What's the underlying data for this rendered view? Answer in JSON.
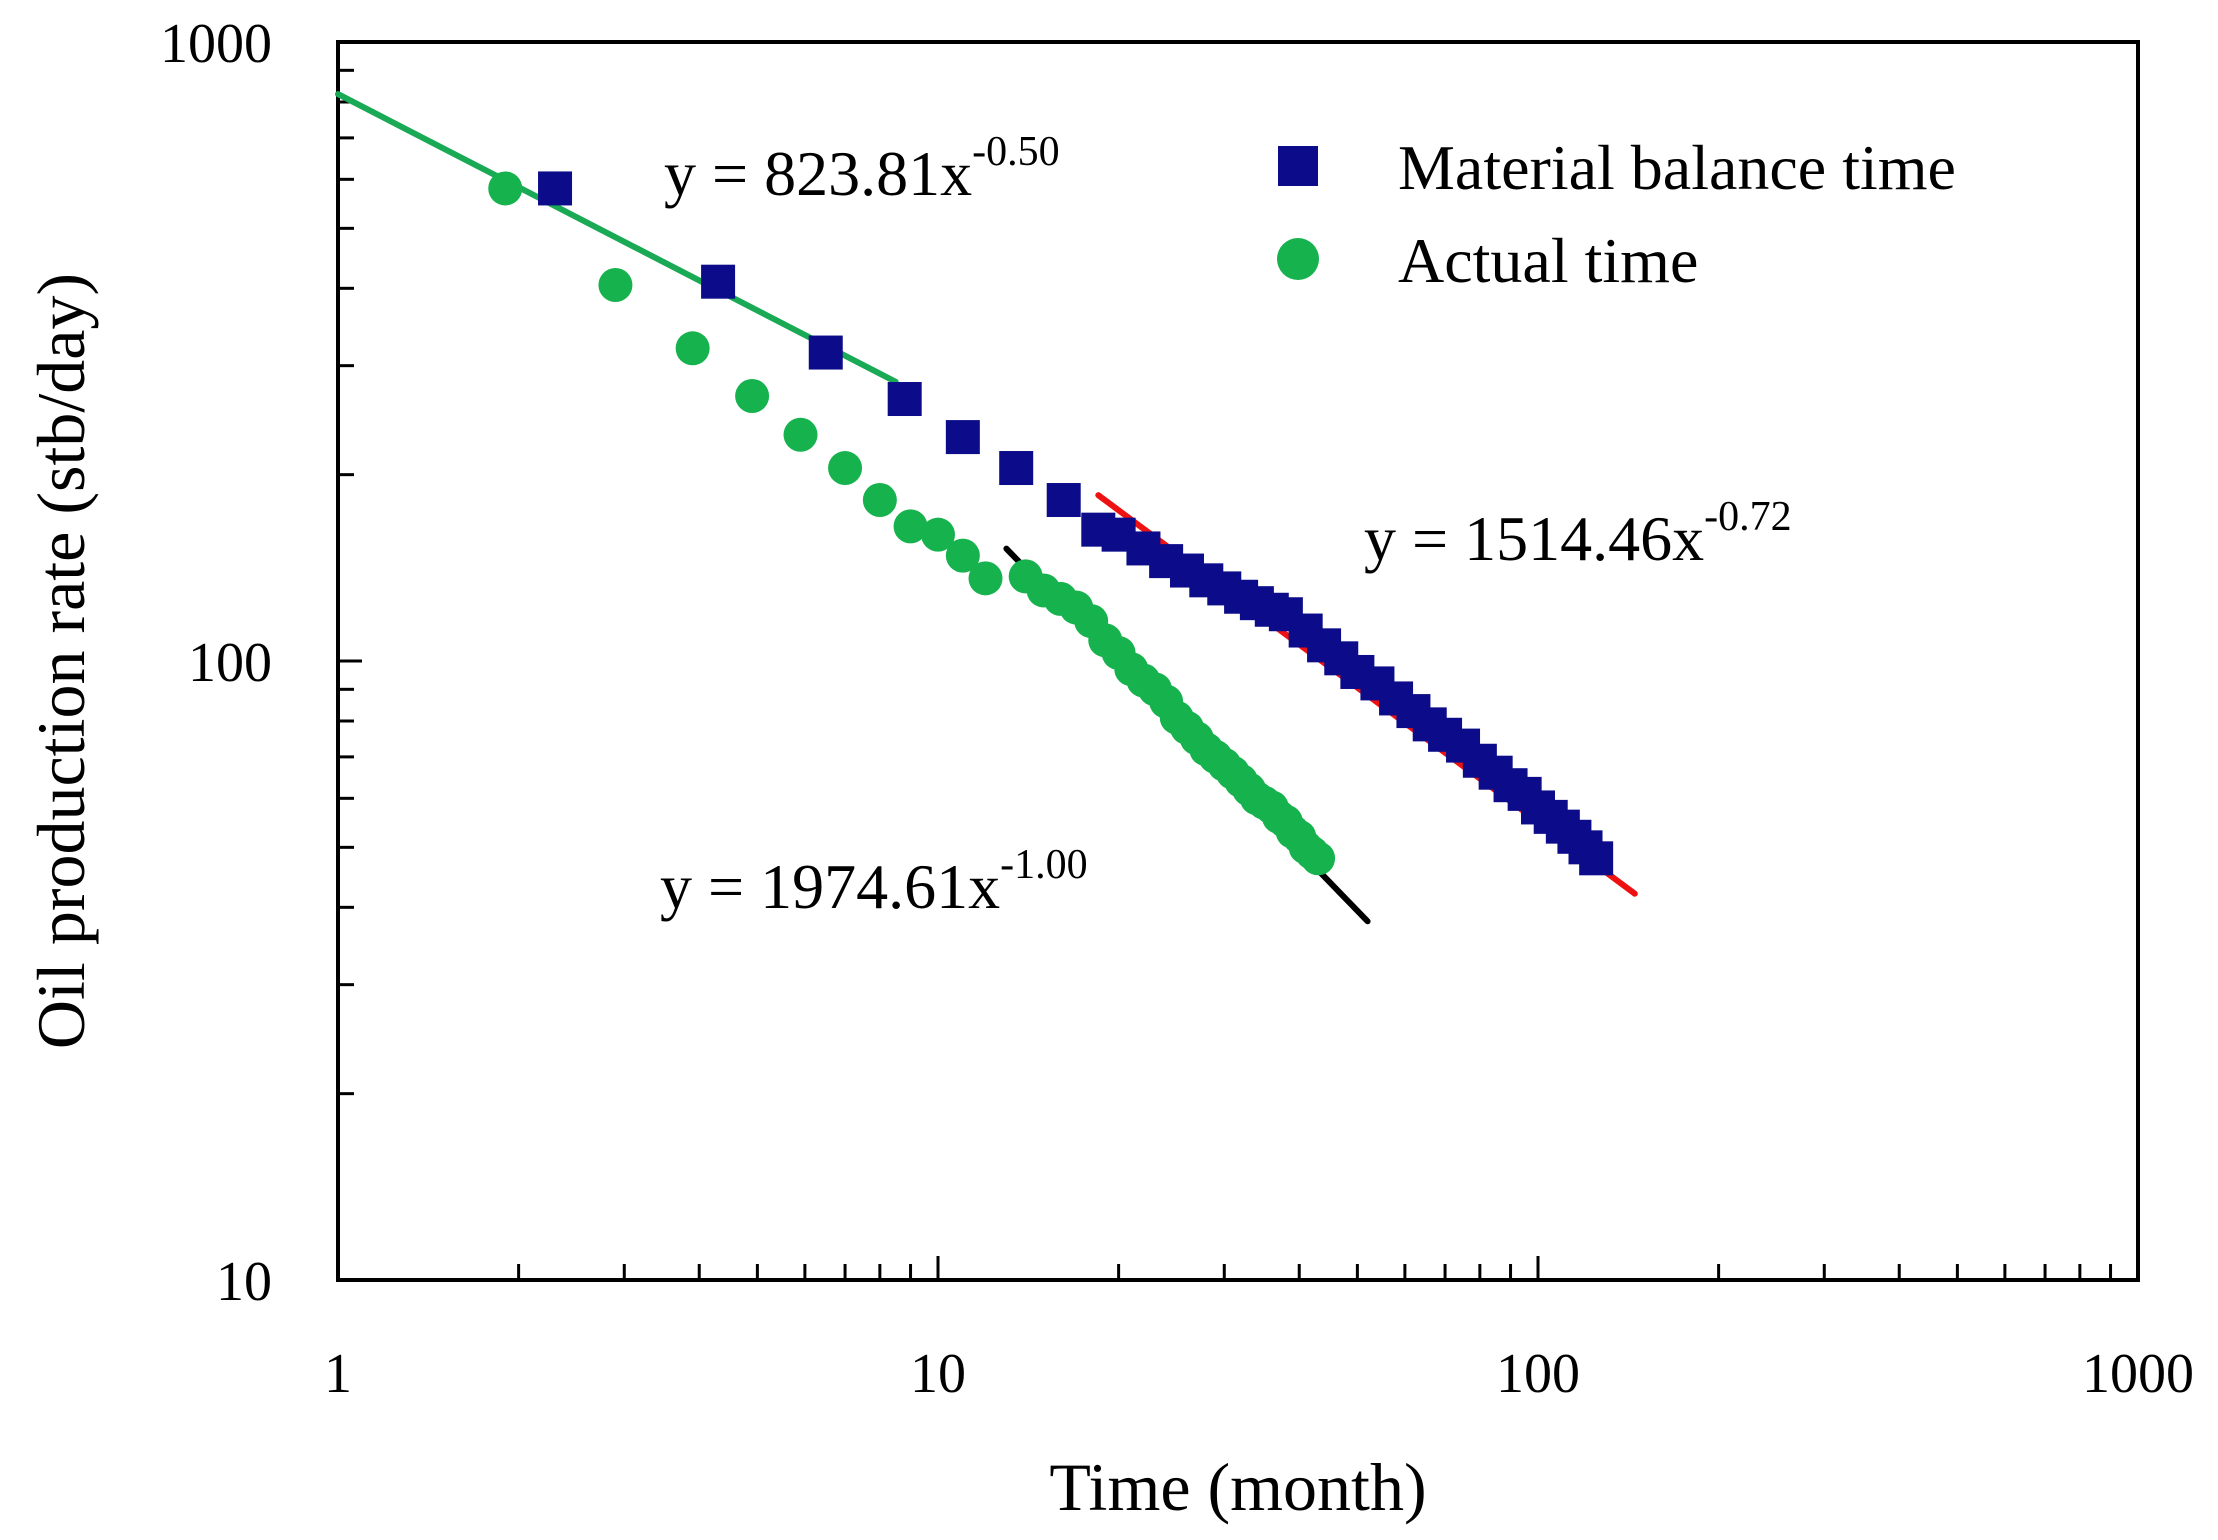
{
  "chart_data": {
    "type": "scatter",
    "xscale": "log",
    "yscale": "log",
    "xlim": [
      1,
      1000
    ],
    "ylim": [
      10,
      1000
    ],
    "xlabel": "Time (month)",
    "ylabel": "Oil production rate (stb/day)",
    "x_ticks": [
      "1",
      "10",
      "100",
      "1000"
    ],
    "y_ticks": [
      "10",
      "100",
      "1000"
    ],
    "grid": false,
    "legend_position": "top-right",
    "colors": {
      "mbt": "#0c0c8a",
      "actual": "#16b24e",
      "fit_early": "#1aaa55",
      "fit_black": "#000000",
      "fit_red": "#ee1111"
    },
    "series": [
      {
        "name": "Material balance time",
        "marker": "square",
        "color": "#0c0c8a",
        "x": [
          2.3,
          4.3,
          6.5,
          8.8,
          11,
          13.5,
          16.2,
          18.5,
          20,
          22,
          24,
          26,
          28,
          30,
          32,
          34,
          36,
          38,
          41,
          44,
          47,
          50,
          54,
          58,
          62,
          66,
          70,
          75,
          80,
          85,
          90,
          95,
          100,
          105,
          110,
          115,
          120,
          125
        ],
        "y": [
          580,
          410,
          315,
          265,
          230,
          205,
          182,
          163,
          160,
          152,
          145,
          140,
          135,
          131,
          127,
          124,
          121,
          119,
          112,
          106,
          101,
          96,
          92,
          87,
          83,
          79,
          76,
          73,
          69,
          66,
          63,
          61,
          58,
          56,
          54,
          52,
          50,
          48
        ]
      },
      {
        "name": "Actual time",
        "marker": "circle",
        "color": "#16b24e",
        "x": [
          1.9,
          2.9,
          3.9,
          4.9,
          5.9,
          7,
          8,
          9,
          10,
          11,
          12,
          14,
          15,
          16,
          17,
          18,
          19,
          20,
          21,
          22,
          23,
          24,
          25,
          26,
          27,
          28,
          29,
          30,
          31,
          32,
          33,
          34,
          35,
          36,
          37,
          38,
          39,
          40,
          41,
          42,
          43
        ],
        "y": [
          580,
          405,
          320,
          268,
          232,
          205,
          182,
          165,
          160,
          148,
          136,
          137,
          130,
          126,
          122,
          116,
          108,
          103,
          97,
          93,
          90,
          86,
          81,
          78,
          75,
          72,
          70,
          68,
          66,
          64,
          62,
          60,
          59,
          58,
          56,
          55,
          53,
          52,
          50,
          49,
          48
        ]
      }
    ],
    "fits": [
      {
        "equation": "y = 823.81x",
        "exponent": "-0.50",
        "coef": 823.81,
        "power": -0.5,
        "x_range": [
          1,
          8.5
        ],
        "color": "#1aaa55"
      },
      {
        "equation": "y = 1974.61x",
        "exponent": "-1.00",
        "coef": 1974.61,
        "power": -1.0,
        "x_range": [
          13,
          52
        ],
        "color": "#000000"
      },
      {
        "equation": "y = 1514.46x",
        "exponent": "-0.72",
        "coef": 1514.46,
        "power": -0.72,
        "x_range": [
          18.5,
          145
        ],
        "color": "#ee1111"
      }
    ]
  }
}
